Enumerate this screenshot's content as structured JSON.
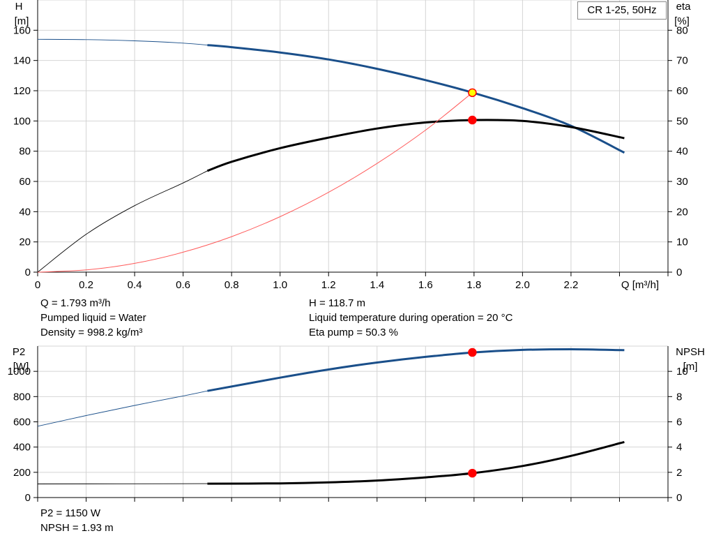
{
  "legend_label": "CR 1-25, 50Hz",
  "info_top": {
    "q": "Q = 1.793 m³/h",
    "liquid": "Pumped liquid = Water",
    "density": "Density = 998.2 kg/m³",
    "h": "H = 118.7 m",
    "temperature": "Liquid temperature during operation = 20 °C",
    "eta": "Eta pump = 50.3 %"
  },
  "info_bottom": {
    "p2": "P2 = 1150 W",
    "npsh": "NPSH = 1.93 m"
  },
  "chart_data": [
    {
      "type": "line",
      "name": "head-efficiency",
      "xlabel": "Q [m³/h]",
      "ylabel_left_line1": "H",
      "ylabel_left_line2": "[m]",
      "ylabel_right_line1": "eta",
      "ylabel_right_line2": "[%]",
      "xlim": [
        0,
        2.6
      ],
      "ylim_left": [
        0,
        180
      ],
      "ylim_right": [
        0,
        90
      ],
      "x_ticks": [
        0,
        0.2,
        0.4,
        0.6,
        0.8,
        1.0,
        1.2,
        1.4,
        1.6,
        1.8,
        2.0,
        2.2
      ],
      "x_tick_labels": [
        "0",
        "0.2",
        "0.4",
        "0.6",
        "0.8",
        "1.0",
        "1.2",
        "1.4",
        "1.6",
        "1.8",
        "2.0",
        "2.2"
      ],
      "y_left_ticks": [
        0,
        20,
        40,
        60,
        80,
        100,
        120,
        140,
        160
      ],
      "y_right_ticks": [
        0,
        10,
        20,
        30,
        40,
        50,
        60,
        70,
        80
      ],
      "grid": true,
      "series": [
        {
          "key": "head",
          "axis": "left",
          "color": "#1a4f8a",
          "x": [
            0,
            0.2,
            0.4,
            0.6,
            0.7,
            0.8,
            1.0,
            1.2,
            1.4,
            1.6,
            1.8,
            2.0,
            2.2,
            2.42
          ],
          "y": [
            154,
            153.8,
            153,
            151.5,
            150.2,
            148.8,
            145.3,
            140.7,
            134.5,
            127,
            118.5,
            108.5,
            96.8,
            79
          ],
          "thin_until_x": 0.7
        },
        {
          "key": "efficiency",
          "axis": "right",
          "color": "#000000",
          "x": [
            0,
            0.2,
            0.4,
            0.6,
            0.7,
            0.8,
            1.0,
            1.2,
            1.4,
            1.6,
            1.8,
            2.0,
            2.2,
            2.42
          ],
          "y": [
            0,
            12.5,
            22,
            29.5,
            33.5,
            36.5,
            41,
            44.5,
            47.5,
            49.5,
            50.3,
            50,
            48,
            44.3
          ],
          "thin_until_x": 0.7
        },
        {
          "key": "system",
          "axis": "left",
          "color": "#ff5a5a",
          "x": [
            0,
            0.2,
            0.4,
            0.6,
            0.8,
            1.0,
            1.2,
            1.4,
            1.6,
            1.793
          ],
          "y": [
            0,
            1.5,
            5.8,
            13.2,
            23.5,
            36.7,
            52.8,
            71.9,
            93.9,
            118.7
          ]
        }
      ],
      "duty_points": [
        {
          "key": "head-duty",
          "x": 1.793,
          "y": 118.7,
          "axis": "left",
          "fill": "#ffff00",
          "stroke": "#ff0000"
        },
        {
          "key": "eta-duty",
          "x": 1.793,
          "y": 50.3,
          "axis": "right",
          "fill": "#ff0000",
          "stroke": "#ff0000"
        }
      ]
    },
    {
      "type": "line",
      "name": "power-npsh",
      "ylabel_left_line1": "P2",
      "ylabel_left_line2": "[W]",
      "ylabel_right_line1": "NPSH",
      "ylabel_right_line2": "[m]",
      "xlim": [
        0,
        2.6
      ],
      "ylim_left": [
        0,
        1200
      ],
      "ylim_right": [
        0,
        12
      ],
      "y_left_ticks": [
        0,
        200,
        400,
        600,
        800,
        1000
      ],
      "y_right_ticks": [
        0,
        2,
        4,
        6,
        8,
        10
      ],
      "grid": true,
      "series": [
        {
          "key": "power",
          "axis": "left",
          "color": "#1a4f8a",
          "x": [
            0,
            0.2,
            0.4,
            0.6,
            0.7,
            0.8,
            1.0,
            1.2,
            1.4,
            1.6,
            1.8,
            2.0,
            2.2,
            2.42
          ],
          "y": [
            565,
            650,
            730,
            805,
            845,
            880,
            950,
            1015,
            1070,
            1115,
            1150,
            1170,
            1175,
            1168
          ],
          "thin_until_x": 0.7
        },
        {
          "key": "npsh",
          "axis": "right",
          "color": "#000000",
          "x": [
            0,
            0.7,
            1.0,
            1.2,
            1.4,
            1.6,
            1.793,
            2.0,
            2.2,
            2.42
          ],
          "y": [
            1.08,
            1.1,
            1.12,
            1.2,
            1.35,
            1.6,
            1.93,
            2.5,
            3.3,
            4.4
          ],
          "thin_until_x": 0.7
        }
      ],
      "duty_points": [
        {
          "key": "p2-duty",
          "x": 1.793,
          "y": 1150,
          "axis": "left",
          "fill": "#ff0000",
          "stroke": "#ff0000"
        },
        {
          "key": "npsh-duty",
          "x": 1.793,
          "y": 1.93,
          "axis": "right",
          "fill": "#ff0000",
          "stroke": "#ff0000"
        }
      ]
    }
  ]
}
